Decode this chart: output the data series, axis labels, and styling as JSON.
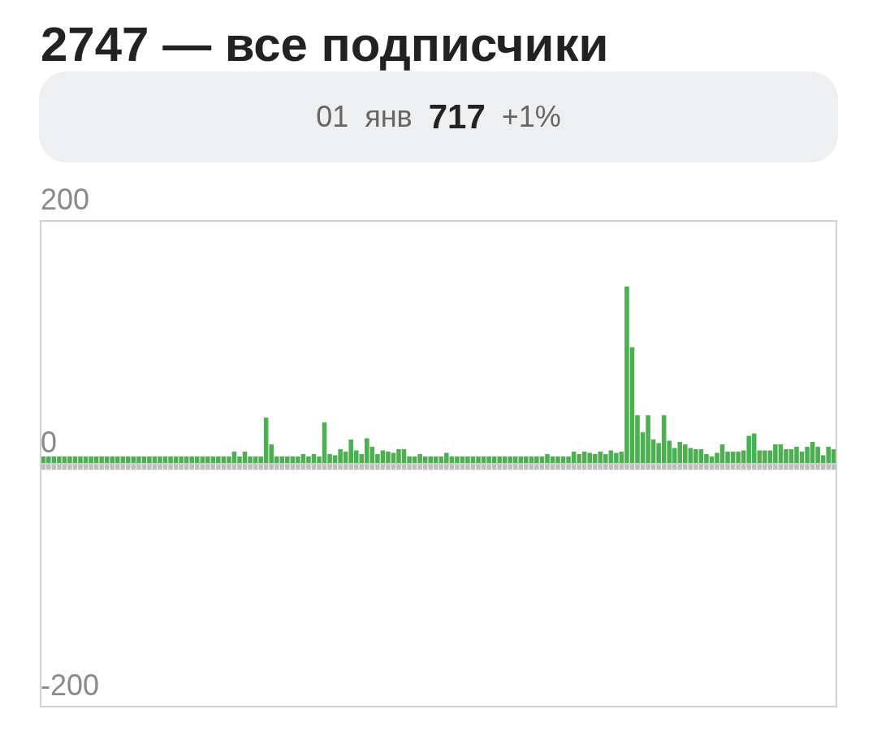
{
  "chart_data": {
    "type": "bar",
    "title": "2747 — все подписчики",
    "subtitle": "01 янв 717 +1%",
    "categories": [
      null,
      null,
      null,
      null,
      null,
      null,
      null,
      null,
      null,
      null,
      null,
      null,
      null,
      null,
      null,
      null,
      null,
      null,
      null,
      null,
      null,
      null,
      null,
      null,
      null,
      null,
      null,
      null,
      null,
      null,
      null,
      null,
      null,
      null,
      null,
      null,
      null,
      null,
      null,
      null,
      null,
      null,
      null,
      null,
      null,
      null,
      null,
      null,
      null,
      null,
      null,
      null,
      null,
      null,
      null,
      null,
      null,
      null,
      null,
      null,
      null,
      null,
      null,
      null,
      null,
      null,
      null,
      null,
      null,
      null,
      null,
      null,
      null,
      null,
      null,
      null,
      null,
      null,
      null,
      null,
      null,
      null,
      null,
      null,
      null,
      null,
      null,
      null,
      null,
      null,
      null,
      null,
      null,
      null,
      null,
      null,
      null,
      null,
      null,
      null,
      null,
      null,
      null,
      null,
      null,
      null,
      null,
      null,
      null,
      null,
      null,
      null,
      null,
      null,
      null,
      null,
      null,
      null,
      null,
      null,
      null,
      null,
      null,
      null,
      null,
      null,
      null,
      null,
      null,
      null,
      null,
      null,
      null,
      null,
      null,
      null,
      null,
      null,
      null,
      null,
      null,
      null,
      null,
      null,
      null,
      null,
      null,
      null,
      null,
      null
    ],
    "series": [
      {
        "color": "#4caf50",
        "values": [
          6,
          6,
          6,
          6,
          6,
          6,
          6,
          6,
          6,
          6,
          6,
          6,
          6,
          6,
          6,
          6,
          6,
          6,
          6,
          6,
          6,
          6,
          6,
          6,
          6,
          6,
          6,
          6,
          6,
          6,
          6,
          6,
          6,
          6,
          6,
          6,
          10,
          6,
          10,
          6,
          6,
          6,
          38,
          16,
          6,
          6,
          6,
          6,
          6,
          8,
          6,
          8,
          6,
          34,
          8,
          7,
          12,
          10,
          20,
          11,
          8,
          21,
          14,
          8,
          11,
          10,
          9,
          12,
          12,
          6,
          6,
          8,
          6,
          6,
          6,
          6,
          9,
          6,
          6,
          6,
          6,
          6,
          6,
          6,
          6,
          6,
          6,
          6,
          6,
          6,
          6,
          6,
          6,
          6,
          6,
          8,
          6,
          6,
          6,
          6,
          10,
          8,
          10,
          9,
          8,
          10,
          8,
          11,
          9,
          10,
          146,
          96,
          40,
          26,
          40,
          20,
          17,
          40,
          19,
          13,
          18,
          16,
          13,
          12,
          12,
          8,
          6,
          9,
          16,
          10,
          10,
          10,
          11,
          23,
          25,
          11,
          11,
          11,
          16,
          16,
          12,
          12,
          14,
          10,
          14,
          18,
          14,
          7,
          14,
          12
        ]
      },
      {
        "color": "#bdbdbd",
        "values": [
          -5,
          -5,
          -5,
          -5,
          -5,
          -5,
          -5,
          -5,
          -5,
          -5,
          -5,
          -5,
          -5,
          -5,
          -5,
          -5,
          -5,
          -5,
          -5,
          -5,
          -5,
          -5,
          -5,
          -5,
          -5,
          -5,
          -5,
          -5,
          -5,
          -5,
          -5,
          -5,
          -5,
          -5,
          -5,
          -5,
          -5,
          -5,
          -5,
          -5,
          -5,
          -5,
          -5,
          -5,
          -5,
          -5,
          -5,
          -5,
          -5,
          -5,
          -5,
          -5,
          -5,
          -5,
          -5,
          -5,
          -5,
          -5,
          -5,
          -5,
          -5,
          -5,
          -5,
          -5,
          -5,
          -5,
          -5,
          -5,
          -5,
          -5,
          -5,
          -5,
          -5,
          -5,
          -5,
          -5,
          -5,
          -5,
          -5,
          -5,
          -5,
          -5,
          -5,
          -5,
          -5,
          -5,
          -5,
          -5,
          -5,
          -5,
          -5,
          -5,
          -5,
          -5,
          -5,
          -5,
          -5,
          -5,
          -5,
          -5,
          -5,
          -5,
          -5,
          -5,
          -5,
          -5,
          -5,
          -5,
          -5,
          -5,
          -5,
          -5,
          -5,
          -5,
          -5,
          -5,
          -5,
          -5,
          -5,
          -5,
          -5,
          -5,
          -5,
          -5,
          -5,
          -5,
          -5,
          -5,
          -5,
          -5,
          -5,
          -5,
          -5,
          -5,
          -5,
          -5,
          -5,
          -5,
          -5,
          -5,
          -5,
          -5,
          -5,
          -5,
          -5,
          -5,
          -5,
          -5,
          -5,
          -5
        ]
      }
    ],
    "stacked": true,
    "ylim": [
      -200,
      200
    ],
    "yticks": [
      -200,
      0,
      200
    ],
    "grid": "y",
    "tick_labels": "y"
  }
}
